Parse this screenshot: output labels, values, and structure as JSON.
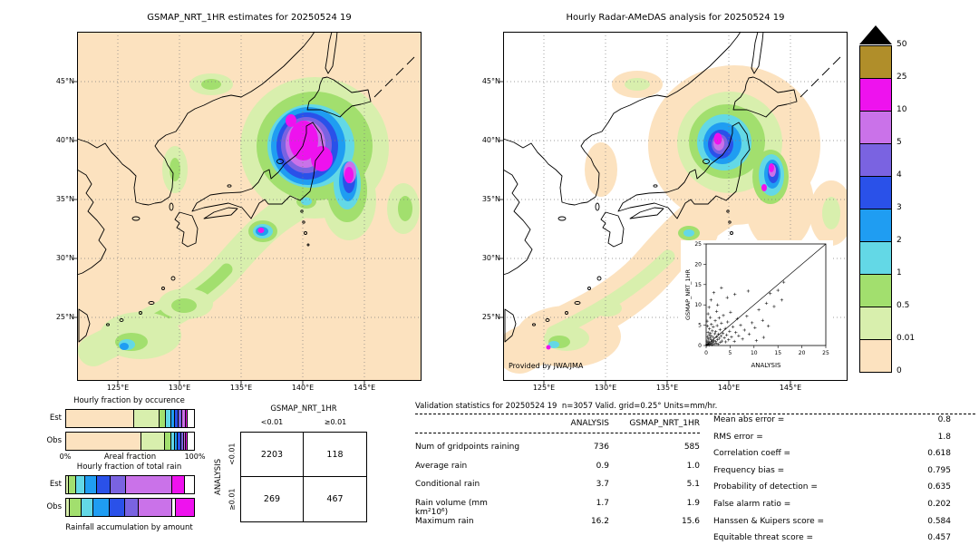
{
  "maps": {
    "left": {
      "title": "GSMAP_NRT_1HR estimates for 20250524 19"
    },
    "right": {
      "title": "Hourly Radar-AMeDAS analysis for 20250524 19",
      "credit": "Provided by JWA/JMA"
    }
  },
  "geo_axis": {
    "lat": [
      "45°N",
      "40°N",
      "35°N",
      "30°N",
      "25°N"
    ],
    "lon": [
      "125°E",
      "130°E",
      "135°E",
      "140°E",
      "145°E"
    ]
  },
  "colorbar": {
    "tick_labels": [
      "50",
      "25",
      "10",
      "5",
      "4",
      "3",
      "2",
      "1",
      "0.5",
      "0.01",
      "0"
    ],
    "colors": [
      "#b08e2a",
      "#ee12ee",
      "#ca72e9",
      "#7a63e1",
      "#2a51e9",
      "#1f9df2",
      "#63d8e6",
      "#a2df6e",
      "#d8efad",
      "#fce2bf"
    ],
    "overflow_color": "#000000"
  },
  "chart_data": [
    {
      "id": "occurrence_fraction",
      "type": "bar",
      "subtype": "stacked_horizontal_percent",
      "title": "Hourly fraction by occurence",
      "xlabel": "Areal fraction",
      "x_min_label": "0%",
      "x_max_label": "100%",
      "rows": [
        {
          "label": "Est",
          "segments": [
            {
              "color": "#fce2bf",
              "pct": 53
            },
            {
              "color": "#d8efad",
              "pct": 20
            },
            {
              "color": "#a2df6e",
              "pct": 5
            },
            {
              "color": "#63d8e6",
              "pct": 4
            },
            {
              "color": "#1f9df2",
              "pct": 3
            },
            {
              "color": "#2a51e9",
              "pct": 3
            },
            {
              "color": "#7a63e1",
              "pct": 3
            },
            {
              "color": "#ca72e9",
              "pct": 2.5
            },
            {
              "color": "#ee12ee",
              "pct": 1.5
            },
            {
              "color": "#ffffff",
              "pct": 5
            }
          ]
        },
        {
          "label": "Obs",
          "segments": [
            {
              "color": "#fce2bf",
              "pct": 59
            },
            {
              "color": "#d8efad",
              "pct": 18
            },
            {
              "color": "#a2df6e",
              "pct": 5
            },
            {
              "color": "#63d8e6",
              "pct": 3
            },
            {
              "color": "#1f9df2",
              "pct": 2.5
            },
            {
              "color": "#2a51e9",
              "pct": 2.5
            },
            {
              "color": "#7a63e1",
              "pct": 2
            },
            {
              "color": "#ca72e9",
              "pct": 1.5
            },
            {
              "color": "#ee12ee",
              "pct": 1.5
            },
            {
              "color": "#ffffff",
              "pct": 5
            }
          ]
        }
      ]
    },
    {
      "id": "total_rain_fraction",
      "type": "bar",
      "subtype": "stacked_horizontal_percent",
      "title": "Hourly fraction of total rain",
      "xlabel": "Rainfall accumulation by amount",
      "rows": [
        {
          "label": "Est",
          "segments": [
            {
              "color": "#d8efad",
              "pct": 2
            },
            {
              "color": "#a2df6e",
              "pct": 6
            },
            {
              "color": "#63d8e6",
              "pct": 7
            },
            {
              "color": "#1f9df2",
              "pct": 9
            },
            {
              "color": "#2a51e9",
              "pct": 11
            },
            {
              "color": "#7a63e1",
              "pct": 12
            },
            {
              "color": "#ca72e9",
              "pct": 36
            },
            {
              "color": "#ee12ee",
              "pct": 10
            },
            {
              "color": "#ffffff",
              "pct": 7
            }
          ]
        },
        {
          "label": "Obs",
          "segments": [
            {
              "color": "#d8efad",
              "pct": 3
            },
            {
              "color": "#a2df6e",
              "pct": 9
            },
            {
              "color": "#63d8e6",
              "pct": 9
            },
            {
              "color": "#1f9df2",
              "pct": 13
            },
            {
              "color": "#2a51e9",
              "pct": 12
            },
            {
              "color": "#7a63e1",
              "pct": 11
            },
            {
              "color": "#ca72e9",
              "pct": 26
            },
            {
              "color": "#ffffff",
              "pct": 3
            },
            {
              "color": "#ee12ee",
              "pct": 14
            }
          ]
        }
      ]
    },
    {
      "id": "contingency",
      "type": "table",
      "col_header": "GSMAP_NRT_1HR",
      "col_labels": [
        "<0.01",
        "≥0.01"
      ],
      "row_header": "ANALYSIS",
      "row_labels": [
        "<0.01",
        "≥0.01"
      ],
      "values": [
        [
          "2203",
          "118"
        ],
        [
          "269",
          "467"
        ]
      ]
    },
    {
      "id": "validation_stats",
      "type": "table",
      "title": "Validation statistics for 20250524 19  n=3057 Valid. grid=0.25° Units=mm/hr.",
      "columns": [
        "ANALYSIS",
        "GSMAP_NRT_1HR"
      ],
      "rows": [
        {
          "label": "Num of gridpoints raining",
          "analysis": "736",
          "gsmap": "585"
        },
        {
          "label": "Average rain",
          "analysis": "0.9",
          "gsmap": "1.0"
        },
        {
          "label": "Conditional rain",
          "analysis": "3.7",
          "gsmap": "5.1"
        },
        {
          "label": "Rain volume (mm km²10⁶)",
          "analysis": "1.7",
          "gsmap": "1.9"
        },
        {
          "label": "Maximum rain",
          "analysis": "16.2",
          "gsmap": "15.6"
        }
      ]
    },
    {
      "id": "skill_metrics",
      "type": "table",
      "items": [
        {
          "label": "Mean abs error =",
          "value": "0.8"
        },
        {
          "label": "RMS error =",
          "value": "1.8"
        },
        {
          "label": "Correlation coeff =",
          "value": "0.618"
        },
        {
          "label": "Frequency bias =",
          "value": "0.795"
        },
        {
          "label": "Probability of detection =",
          "value": "0.635"
        },
        {
          "label": "False alarm ratio =",
          "value": "0.202"
        },
        {
          "label": "Hanssen & Kuipers score =",
          "value": "0.584"
        },
        {
          "label": "Equitable threat score =",
          "value": "0.457"
        }
      ]
    },
    {
      "id": "inset_scatter",
      "type": "scatter",
      "xlabel": "ANALYSIS",
      "ylabel": "GSMAP_NRT_1HR",
      "xlim": [
        0,
        25
      ],
      "ylim": [
        0,
        25
      ],
      "ticks": [
        0,
        5,
        10,
        15,
        20,
        25
      ],
      "points": [
        [
          0.1,
          0.1
        ],
        [
          0.2,
          0.4
        ],
        [
          0.2,
          1.1
        ],
        [
          0.3,
          0.2
        ],
        [
          0.3,
          2.1
        ],
        [
          0.4,
          0.8
        ],
        [
          0.4,
          3.2
        ],
        [
          0.5,
          0.3
        ],
        [
          0.5,
          1.6
        ],
        [
          0.6,
          0.1
        ],
        [
          0.6,
          2.6
        ],
        [
          0.7,
          0.9
        ],
        [
          0.7,
          4.1
        ],
        [
          0.8,
          0.4
        ],
        [
          0.8,
          1.9
        ],
        [
          0.9,
          3.0
        ],
        [
          1.0,
          0.6
        ],
        [
          1.0,
          1.4
        ],
        [
          1.1,
          2.4
        ],
        [
          1.1,
          5.2
        ],
        [
          1.2,
          0.2
        ],
        [
          1.3,
          1.0
        ],
        [
          1.3,
          3.6
        ],
        [
          1.4,
          0.7
        ],
        [
          1.5,
          2.0
        ],
        [
          1.5,
          4.6
        ],
        [
          1.6,
          1.2
        ],
        [
          1.7,
          0.4
        ],
        [
          1.8,
          2.9
        ],
        [
          1.9,
          6.1
        ],
        [
          2.0,
          1.0
        ],
        [
          2.0,
          3.4
        ],
        [
          2.1,
          0.6
        ],
        [
          2.2,
          2.2
        ],
        [
          2.3,
          4.9
        ],
        [
          2.4,
          1.5
        ],
        [
          2.5,
          0.3
        ],
        [
          2.6,
          2.8
        ],
        [
          2.7,
          6.8
        ],
        [
          2.8,
          1.8
        ],
        [
          2.9,
          3.9
        ],
        [
          3.0,
          0.8
        ],
        [
          3.1,
          2.4
        ],
        [
          3.2,
          5.5
        ],
        [
          3.3,
          1.1
        ],
        [
          3.5,
          3.0
        ],
        [
          3.6,
          7.4
        ],
        [
          3.8,
          1.9
        ],
        [
          4.0,
          4.2
        ],
        [
          4.1,
          0.9
        ],
        [
          4.3,
          2.6
        ],
        [
          4.5,
          5.8
        ],
        [
          4.7,
          1.4
        ],
        [
          4.9,
          3.5
        ],
        [
          5.1,
          8.2
        ],
        [
          5.3,
          2.1
        ],
        [
          5.6,
          4.6
        ],
        [
          5.9,
          1.0
        ],
        [
          6.2,
          3.2
        ],
        [
          6.5,
          6.6
        ],
        [
          6.8,
          2.4
        ],
        [
          7.2,
          5.0
        ],
        [
          7.6,
          1.6
        ],
        [
          8.0,
          3.8
        ],
        [
          8.5,
          7.2
        ],
        [
          9.0,
          2.8
        ],
        [
          9.6,
          5.6
        ],
        [
          10.2,
          4.4
        ],
        [
          11.0,
          8.8
        ],
        [
          11.8,
          6.2
        ],
        [
          12.6,
          10.4
        ],
        [
          13.4,
          12.8
        ],
        [
          14.2,
          9.6
        ],
        [
          15.0,
          13.6
        ],
        [
          15.8,
          11.2
        ],
        [
          16.2,
          15.6
        ],
        [
          0.2,
          6.0
        ],
        [
          0.4,
          7.8
        ],
        [
          0.6,
          9.4
        ],
        [
          1.0,
          11.2
        ],
        [
          1.6,
          13.0
        ],
        [
          2.4,
          10.0
        ],
        [
          3.2,
          14.2
        ],
        [
          0.3,
          4.8
        ],
        [
          0.9,
          6.9
        ],
        [
          2.2,
          8.4
        ],
        [
          4.4,
          11.8
        ],
        [
          6.0,
          12.6
        ],
        [
          8.8,
          13.4
        ],
        [
          12.0,
          2.0
        ],
        [
          13.0,
          4.8
        ],
        [
          10.5,
          1.2
        ]
      ]
    }
  ]
}
